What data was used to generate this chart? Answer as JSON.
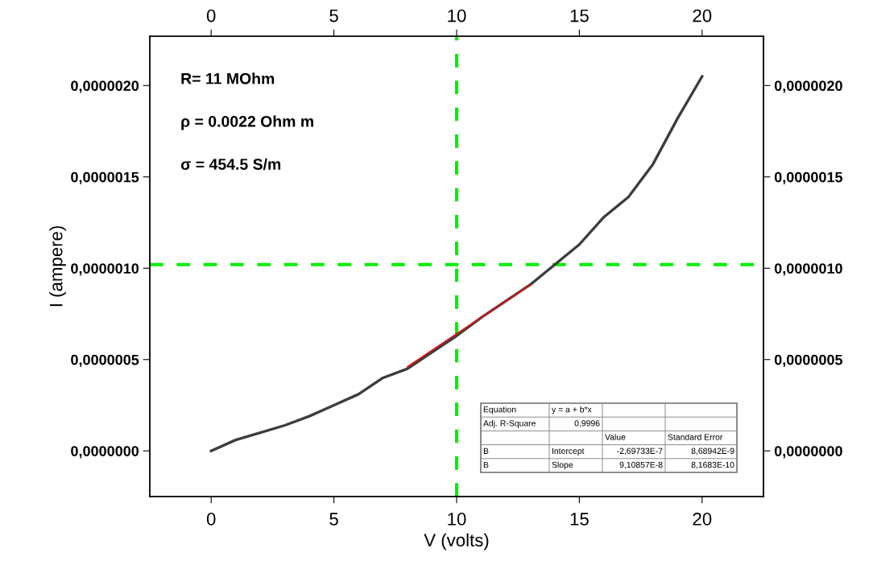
{
  "chart_data": {
    "type": "line",
    "xlabel": "V (volts)",
    "ylabel": "I (ampere)",
    "xlim": [
      -2.5,
      22.5
    ],
    "xticks": [
      0,
      5,
      10,
      15,
      20
    ],
    "x2lim": [
      -2.5,
      22.5
    ],
    "x2ticks": [
      0,
      5,
      10,
      15,
      20
    ],
    "ylim": [
      -2.5e-07,
      2.27e-06
    ],
    "yticks": [
      {
        "value": 0,
        "label": "0,0000000"
      },
      {
        "value": 5e-07,
        "label": "0,0000005"
      },
      {
        "value": 1e-06,
        "label": "0,0000010"
      },
      {
        "value": 1.5e-06,
        "label": "0,0000015"
      },
      {
        "value": 2e-06,
        "label": "0,0000020"
      }
    ],
    "y2lim": [
      -2.5e-07,
      2.27e-06
    ],
    "y2ticks": [
      {
        "value": 0,
        "label": "0,0000000"
      },
      {
        "value": 5e-07,
        "label": "0,0000005"
      },
      {
        "value": 1e-06,
        "label": "0,0000010"
      },
      {
        "value": 1.5e-06,
        "label": "0,0000015"
      },
      {
        "value": 2e-06,
        "label": "0,0000020"
      }
    ],
    "x": [
      0,
      1,
      2,
      3,
      4,
      5,
      6,
      7,
      8,
      9,
      10,
      11,
      12,
      13,
      14,
      15,
      16,
      17,
      18,
      19,
      20
    ],
    "series": [
      {
        "color": "#3c3c3c",
        "values": [
          0,
          6e-08,
          1e-07,
          1.4e-07,
          1.9e-07,
          2.5e-07,
          3.1e-07,
          4e-07,
          4.5e-07,
          5.4e-07,
          6.3e-07,
          7.3e-07,
          8.2e-07,
          9.1e-07,
          1.02e-06,
          1.13e-06,
          1.28e-06,
          1.39e-06,
          1.57e-06,
          1.82e-06,
          2.05e-06
        ]
      },
      {
        "type": "line",
        "color": "#cc1a1a",
        "x": [
          8,
          13
        ],
        "values": [
          4.6e-07,
          9.1e-07
        ]
      }
    ],
    "ref_lines": [
      {
        "axis": "x",
        "value": 10,
        "color": "#00ee00",
        "line_style": "dashed"
      },
      {
        "axis": "y",
        "value": 1.02e-06,
        "color": "#00ee00",
        "line_style": "dashed"
      }
    ],
    "annotations": [
      "R= 11 MOhm",
      "ρ = 0.0022 Ohm m",
      "σ = 454.5 S/m",
      "Equation",
      "y = a + b*x",
      "Adj. R-Square",
      "0,9996",
      "Value",
      "Standard Error",
      "B",
      "Intercept",
      "-2,69733E-7",
      "8,68942E-9",
      "B",
      "Slope",
      "9,10857E-8",
      "8,1683E-10"
    ],
    "grid": false,
    "marker": "none",
    "line_style": "solid"
  }
}
